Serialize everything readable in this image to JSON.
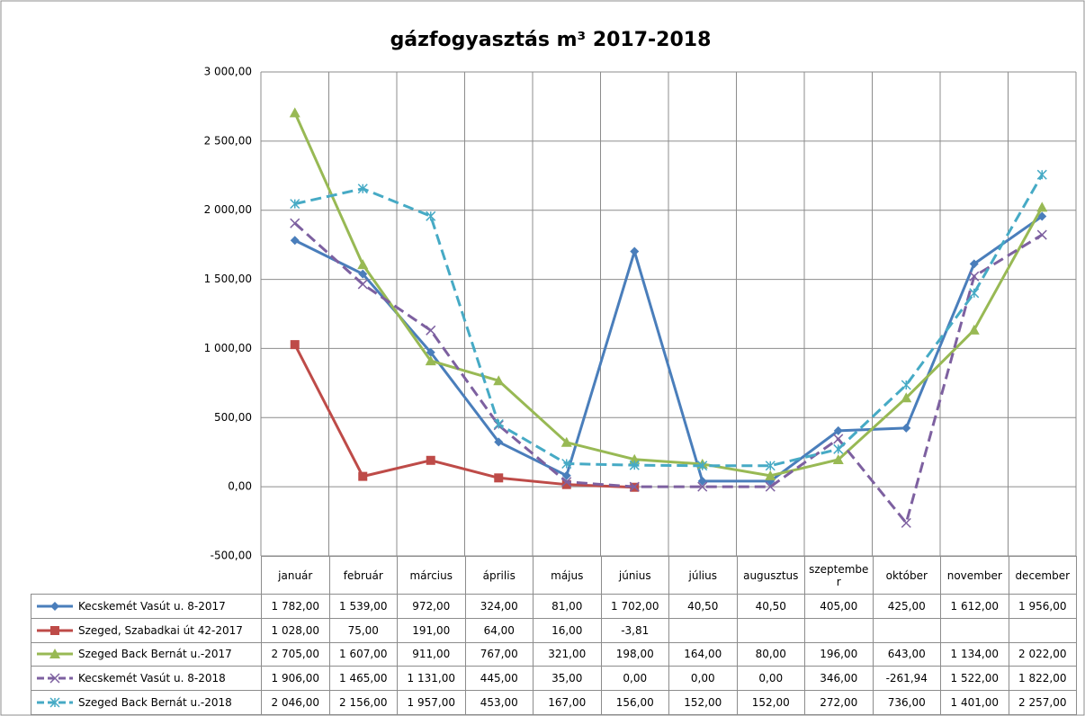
{
  "chart_data": {
    "type": "line",
    "title": "gázfogyasztás m³ 2017-2018",
    "categories": [
      "január",
      "február",
      "március",
      "április",
      "május",
      "június",
      "július",
      "augusztus",
      "szeptember",
      "október",
      "november",
      "december"
    ],
    "ylim": [
      -500,
      3000
    ],
    "yticks": [
      {
        "value": -500,
        "label": "-500,00"
      },
      {
        "value": 0,
        "label": "0,00"
      },
      {
        "value": 500,
        "label": "500,00"
      },
      {
        "value": 1000,
        "label": "1 000,00"
      },
      {
        "value": 1500,
        "label": "1 500,00"
      },
      {
        "value": 2000,
        "label": "2 000,00"
      },
      {
        "value": 2500,
        "label": "2 500,00"
      },
      {
        "value": 3000,
        "label": "3 000,00"
      }
    ],
    "grid": true,
    "series": [
      {
        "name": "Kecskemét Vasút u. 8-2017",
        "color": "#4a7ebb",
        "marker": "diamond",
        "dashed": false,
        "values": [
          1782,
          1539,
          972,
          324,
          81,
          1702,
          40.5,
          40.5,
          405,
          425,
          1612,
          1956
        ],
        "value_labels": [
          "1 782,00",
          "1 539,00",
          "972,00",
          "324,00",
          "81,00",
          "1 702,00",
          "40,50",
          "40,50",
          "405,00",
          "425,00",
          "1 612,00",
          "1 956,00"
        ]
      },
      {
        "name": "Szeged, Szabadkai út 42-2017",
        "color": "#be4b48",
        "marker": "square",
        "dashed": false,
        "values": [
          1028,
          75,
          191,
          64,
          16,
          -3.81,
          null,
          null,
          null,
          null,
          null,
          null
        ],
        "value_labels": [
          "1 028,00",
          "75,00",
          "191,00",
          "64,00",
          "16,00",
          "-3,81",
          null,
          null,
          null,
          null,
          null,
          null
        ]
      },
      {
        "name": "Szeged Back Bernát u.-2017",
        "color": "#98b954",
        "marker": "triangle",
        "dashed": false,
        "values": [
          2705,
          1607,
          911,
          767,
          321,
          198,
          164,
          80,
          196,
          643,
          1134,
          2022
        ],
        "value_labels": [
          "2 705,00",
          "1 607,00",
          "911,00",
          "767,00",
          "321,00",
          "198,00",
          "164,00",
          "80,00",
          "196,00",
          "643,00",
          "1 134,00",
          "2 022,00"
        ]
      },
      {
        "name": "Kecskemét Vasút u. 8-2018",
        "color": "#7d60a0",
        "marker": "x",
        "dashed": true,
        "values": [
          1906,
          1465,
          1131,
          445,
          35,
          0,
          0,
          0,
          346,
          -261.94,
          1522,
          1822
        ],
        "value_labels": [
          "1 906,00",
          "1 465,00",
          "1 131,00",
          "445,00",
          "35,00",
          "0,00",
          "0,00",
          "0,00",
          "346,00",
          "-261,94",
          "1 522,00",
          "1 822,00"
        ]
      },
      {
        "name": "Szeged Back Bernát u.-2018",
        "color": "#46aac5",
        "marker": "star",
        "dashed": true,
        "values": [
          2046,
          2156,
          1957,
          453,
          167,
          156,
          152,
          152,
          272,
          736,
          1401,
          2257
        ],
        "value_labels": [
          "2 046,00",
          "2 156,00",
          "1 957,00",
          "453,00",
          "167,00",
          "156,00",
          "152,00",
          "152,00",
          "272,00",
          "736,00",
          "1 401,00",
          "2 257,00"
        ]
      }
    ]
  }
}
